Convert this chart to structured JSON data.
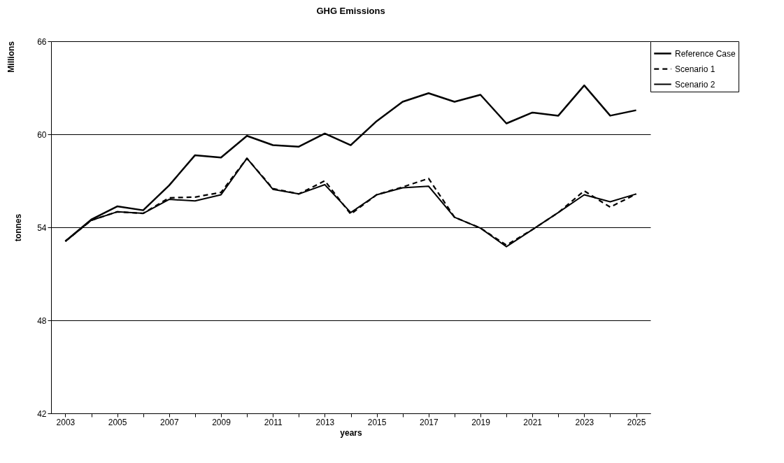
{
  "chart_data": {
    "type": "line",
    "title": "GHG Emissions",
    "xlabel": "years",
    "ylabel": "tonnes",
    "annotations": [
      "Millions"
    ],
    "categories": [
      "2003",
      null,
      "2005",
      null,
      "2007",
      null,
      "2009",
      null,
      "2011",
      null,
      "2013",
      null,
      "2015",
      null,
      "2017",
      null,
      "2019",
      null,
      "2021",
      null,
      "2023",
      null,
      "2025"
    ],
    "ylim": [
      42,
      66
    ],
    "yticks": [
      42,
      48,
      54,
      60,
      66
    ],
    "grid": "y",
    "legend": "right",
    "series": [
      {
        "name": "Reference Case",
        "color": "#000000",
        "line_style": "solid",
        "values": [
          53.1,
          54.5,
          55.35,
          55.1,
          56.7,
          58.65,
          58.5,
          59.9,
          59.3,
          59.2,
          60.05,
          59.3,
          60.85,
          62.1,
          62.65,
          62.1,
          62.55,
          60.7,
          61.4,
          61.2,
          63.15,
          61.2,
          61.55
        ]
      },
      {
        "name": "Scenario 1",
        "color": "#000000",
        "line_style": "dashed",
        "values": [
          53.1,
          54.45,
          55.0,
          54.9,
          55.9,
          55.95,
          56.25,
          58.45,
          56.5,
          56.15,
          57.0,
          54.85,
          56.1,
          56.6,
          57.15,
          54.65,
          53.95,
          52.85,
          53.85,
          54.95,
          56.35,
          55.3,
          56.15
        ]
      },
      {
        "name": "Scenario 2",
        "color": "#000000",
        "line_style": "solid",
        "values": [
          53.1,
          54.45,
          55.0,
          54.9,
          55.8,
          55.7,
          56.1,
          58.45,
          56.45,
          56.15,
          56.75,
          54.95,
          56.1,
          56.55,
          56.65,
          54.65,
          53.95,
          52.75,
          53.85,
          54.95,
          56.1,
          55.65,
          56.15
        ]
      }
    ]
  }
}
